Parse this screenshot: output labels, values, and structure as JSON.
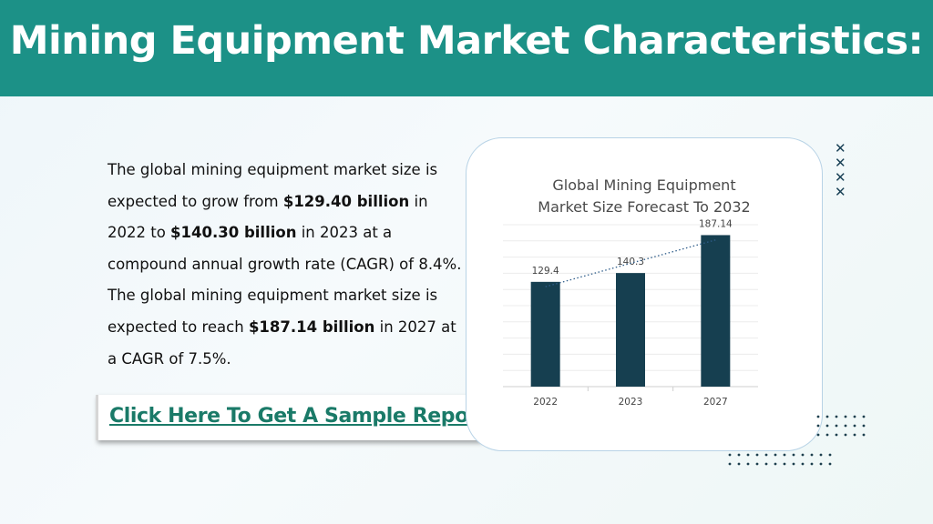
{
  "header": {
    "title": "Mining Equipment Market Characteristics:"
  },
  "description": {
    "t1": "The global mining equipment market size is expected to grow from ",
    "b1": "$129.40 billion",
    "t2": " in 2022 to ",
    "b2": "$140.30 billion",
    "t3": " in 2023 at a compound annual growth rate (CAGR) of 8.4%. The global mining equipment market size is expected to reach ",
    "b3": "$187.14 billion",
    "t4": " in 2027 at a CAGR of 7.5%."
  },
  "cta": {
    "label": "Click Here To Get A Sample Report"
  },
  "decor": {
    "x_icon": "x-mark-icon",
    "x_glyph": "✕"
  },
  "colors": {
    "header": "#1c9187",
    "bar": "#163f50",
    "cta_text": "#1a7a68",
    "trend": "#2f5d8a"
  },
  "chart_data": {
    "type": "bar",
    "title_line1": "Global Mining Equipment",
    "title_line2": "Market Size Forecast To 2032",
    "categories": [
      "2022",
      "2023",
      "2027"
    ],
    "values": [
      129.4,
      140.3,
      187.14
    ],
    "value_labels": [
      "129.4",
      "140.3",
      "187.14"
    ],
    "ylim": [
      0,
      200
    ],
    "grid": true,
    "trendline": "dotted linear",
    "legend": "none"
  }
}
